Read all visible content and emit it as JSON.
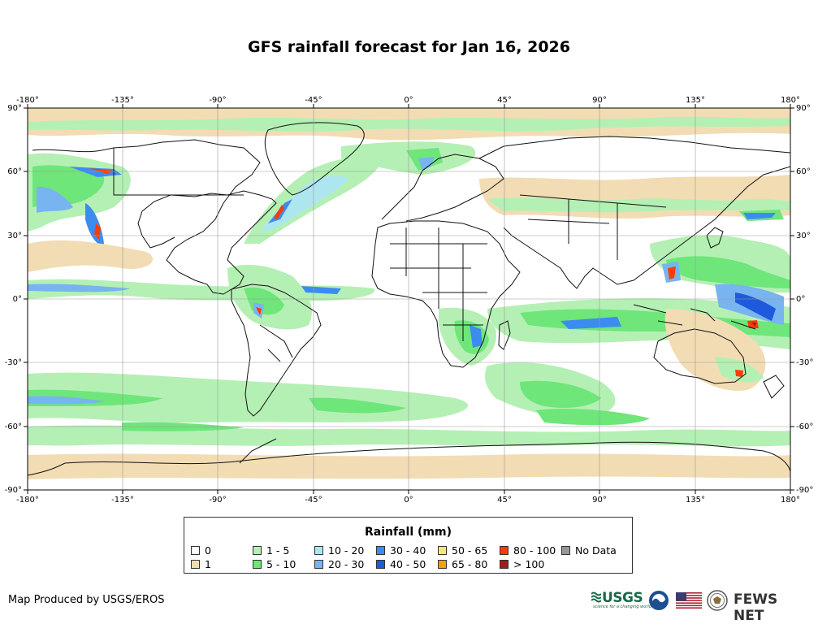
{
  "title": "GFS rainfall forecast for Jan 16, 2026",
  "axes": {
    "lon_labels": [
      "-180°",
      "-135°",
      "-90°",
      "-45°",
      "0°",
      "45°",
      "90°",
      "135°",
      "180°"
    ],
    "lat_labels": [
      "90°",
      "60°",
      "30°",
      "0°",
      "-30°",
      "-60°",
      "-90°"
    ]
  },
  "legend": {
    "title": "Rainfall (mm)",
    "items": [
      {
        "label": "0",
        "color": "#ffffff"
      },
      {
        "label": "1",
        "color": "#f2dcb4"
      },
      {
        "label": "1 - 5",
        "color": "#b4f0b4"
      },
      {
        "label": "5 - 10",
        "color": "#6ee67a"
      },
      {
        "label": "10 - 20",
        "color": "#aee6f0"
      },
      {
        "label": "20 - 30",
        "color": "#78b4f0"
      },
      {
        "label": "30 - 40",
        "color": "#3c8cf0"
      },
      {
        "label": "40 - 50",
        "color": "#1e5adc"
      },
      {
        "label": "50 - 65",
        "color": "#f5e678"
      },
      {
        "label": "65 - 80",
        "color": "#f5a000"
      },
      {
        "label": "80 - 100",
        "color": "#ff3c00"
      },
      {
        "label": "> 100",
        "color": "#a01e1e"
      },
      {
        "label": "No Data",
        "color": "#969696"
      }
    ]
  },
  "footer": {
    "credit": "Map Produced by USGS/EROS",
    "logos": {
      "usgs": "USGS",
      "usgs_tagline": "science for a changing world",
      "fews": "FEWS NET"
    }
  },
  "icons": [
    "usgs-logo-icon",
    "noaa-logo-icon",
    "us-flag-icon",
    "state-department-seal-icon"
  ]
}
